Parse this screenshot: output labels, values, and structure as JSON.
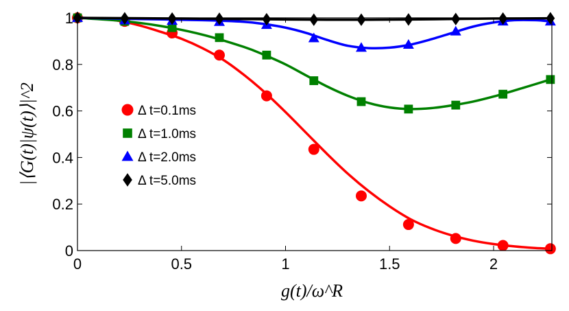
{
  "chart_data": {
    "type": "line",
    "title": "",
    "xlabel": "g(t)/ω^R",
    "ylabel": "|⟨G(t)|ψ(t)⟩|^2",
    "xlim": [
      0,
      2.28
    ],
    "ylim": [
      0,
      1
    ],
    "xticks": [
      0,
      0.5,
      1,
      1.5,
      2
    ],
    "xtick_labels": [
      "0",
      "0.5",
      "1",
      "1.5",
      "2"
    ],
    "yticks": [
      0,
      0.2,
      0.4,
      0.6,
      0.8,
      1
    ],
    "ytick_labels": [
      "0",
      "0.2",
      "0.4",
      "0.6",
      "0.8",
      "1"
    ],
    "grid": false,
    "legend_position": "center-left",
    "marker_x": [
      0,
      0.227,
      0.455,
      0.682,
      0.909,
      1.136,
      1.364,
      1.591,
      1.818,
      2.045,
      2.273
    ],
    "series": [
      {
        "name": "Δ t=0.1ms",
        "color": "#ff0000",
        "marker": "circle",
        "values": [
          1.0,
          0.985,
          0.935,
          0.84,
          0.665,
          0.435,
          0.235,
          0.112,
          0.052,
          0.022,
          0.008
        ],
        "curve_x": [
          0,
          0.1,
          0.2,
          0.3,
          0.4,
          0.5,
          0.6,
          0.7,
          0.8,
          0.9,
          1.0,
          1.1,
          1.2,
          1.3,
          1.4,
          1.5,
          1.6,
          1.7,
          1.8,
          1.9,
          2.0,
          2.1,
          2.2,
          2.273
        ],
        "curve_y": [
          1.0,
          0.997,
          0.987,
          0.967,
          0.94,
          0.91,
          0.87,
          0.82,
          0.755,
          0.68,
          0.595,
          0.505,
          0.415,
          0.33,
          0.255,
          0.19,
          0.135,
          0.095,
          0.065,
          0.043,
          0.028,
          0.018,
          0.011,
          0.008
        ]
      },
      {
        "name": "Δ t=1.0ms",
        "color": "#008000",
        "marker": "square",
        "values": [
          1.0,
          0.985,
          0.958,
          0.915,
          0.84,
          0.73,
          0.64,
          0.608,
          0.625,
          0.672,
          0.735
        ],
        "curve_x": [
          0,
          0.2,
          0.4,
          0.6,
          0.8,
          0.9,
          1.0,
          1.1,
          1.2,
          1.3,
          1.4,
          1.5,
          1.6,
          1.7,
          1.8,
          1.9,
          2.0,
          2.1,
          2.2,
          2.273
        ],
        "curve_y": [
          1.0,
          0.988,
          0.965,
          0.928,
          0.875,
          0.84,
          0.8,
          0.752,
          0.705,
          0.665,
          0.634,
          0.615,
          0.608,
          0.612,
          0.624,
          0.64,
          0.662,
          0.688,
          0.715,
          0.735
        ]
      },
      {
        "name": "Δ t=2.0ms",
        "color": "#0000ff",
        "marker": "triangle",
        "values": [
          1.0,
          0.99,
          0.988,
          0.983,
          0.97,
          0.913,
          0.872,
          0.885,
          0.942,
          0.985,
          0.985
        ],
        "curve_x": [
          0,
          0.3,
          0.6,
          0.8,
          0.9,
          1.0,
          1.1,
          1.2,
          1.3,
          1.4,
          1.5,
          1.6,
          1.7,
          1.8,
          1.9,
          2.0,
          2.1,
          2.2,
          2.273
        ],
        "curve_y": [
          1.0,
          0.995,
          0.99,
          0.983,
          0.973,
          0.958,
          0.935,
          0.905,
          0.88,
          0.87,
          0.872,
          0.885,
          0.908,
          0.935,
          0.962,
          0.98,
          0.99,
          0.99,
          0.985
        ]
      },
      {
        "name": "Δ t=5.0ms",
        "color": "#000000",
        "marker": "diamond",
        "values": [
          1.0,
          0.998,
          0.997,
          0.996,
          0.994,
          0.992,
          0.992,
          0.993,
          0.995,
          0.997,
          0.998
        ],
        "curve_x": [
          0,
          0.5,
          1.0,
          1.2,
          1.4,
          1.6,
          2.0,
          2.273
        ],
        "curve_y": [
          1.0,
          0.997,
          0.993,
          0.992,
          0.992,
          0.993,
          0.997,
          0.998
        ]
      }
    ]
  }
}
